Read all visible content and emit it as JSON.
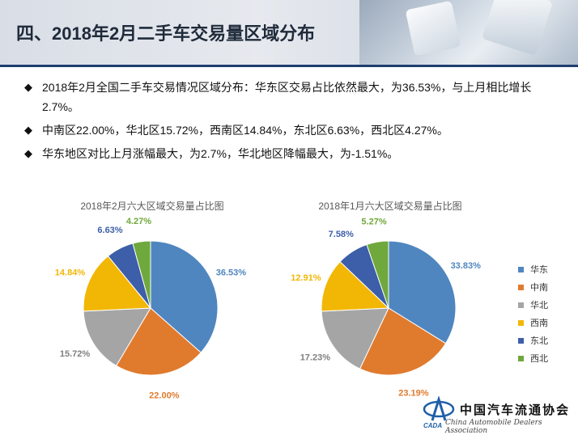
{
  "page": {
    "title": "四、2018年2月二手车交易量区域分布",
    "bullet_symbol": "◆",
    "bullets": [
      "2018年2月全国二手车交易情况区域分布：华东区交易占比依然最大，为36.53%，与上月相比增长2.7%。",
      "中南区22.00%，华北区15.72%，西南区14.84%，东北区6.63%，西北区4.27%。",
      "华东地区对比上月涨幅最大，为2.7%，华北地区降幅最大，为-1.51%。"
    ]
  },
  "colors": {
    "华东": "#4f86c0",
    "中南": "#e07b2e",
    "华北": "#a5a5a5",
    "西南": "#f2b705",
    "东北": "#3d5ea8",
    "西北": "#6fa83c"
  },
  "chart_data": [
    {
      "type": "pie",
      "title": "2018年2月六大区域交易量占比图",
      "categories": [
        "华东",
        "中南",
        "华北",
        "西南",
        "东北",
        "西北"
      ],
      "values": [
        36.53,
        22.0,
        15.72,
        14.84,
        6.63,
        4.27
      ],
      "labels": [
        "36.53%",
        "22.00%",
        "15.72%",
        "14.84%",
        "6.63%",
        "4.27%"
      ],
      "legend": "none"
    },
    {
      "type": "pie",
      "title": "2018年1月六大区域交易量占比图",
      "categories": [
        "华东",
        "中南",
        "华北",
        "西南",
        "东北",
        "西北"
      ],
      "values": [
        33.83,
        23.19,
        17.23,
        12.91,
        7.58,
        5.27
      ],
      "labels": [
        "33.83%",
        "23.19%",
        "17.23%",
        "12.91%",
        "7.58%",
        "5.27%"
      ],
      "legend": "right"
    }
  ],
  "legend": [
    "华东",
    "中南",
    "华北",
    "西南",
    "东北",
    "西北"
  ],
  "logo": {
    "name": "中国汽车流通协会",
    "abbr": "CADA",
    "english": "China Automobile Dealers Association"
  }
}
